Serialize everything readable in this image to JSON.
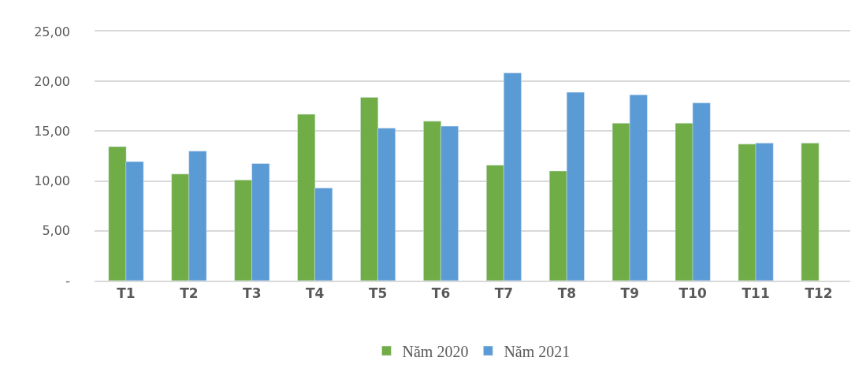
{
  "chart_data": {
    "type": "bar",
    "categories": [
      "T1",
      "T2",
      "T3",
      "T4",
      "T5",
      "T6",
      "T7",
      "T8",
      "T9",
      "T10",
      "T11",
      "T12"
    ],
    "series": [
      {
        "name": "Năm 2020",
        "color": "#70ad47",
        "values": [
          13.45,
          10.7,
          10.1,
          16.7,
          18.4,
          16.0,
          11.6,
          11.0,
          15.8,
          15.8,
          13.7,
          13.8
        ]
      },
      {
        "name": "Năm 2021",
        "color": "#5b9bd5",
        "values": [
          11.95,
          13.0,
          11.75,
          9.3,
          15.3,
          15.5,
          20.85,
          18.9,
          18.65,
          17.85,
          13.8,
          null
        ]
      }
    ],
    "ylim": [
      0,
      25
    ],
    "yticks": [
      {
        "value": 0,
        "label": "-"
      },
      {
        "value": 5,
        "label": "5,00"
      },
      {
        "value": 10,
        "label": "10,00"
      },
      {
        "value": 15,
        "label": "15,00"
      },
      {
        "value": 20,
        "label": "20,00"
      },
      {
        "value": 25,
        "label": "25,00"
      }
    ],
    "grid": "y",
    "legend": "bottom"
  }
}
